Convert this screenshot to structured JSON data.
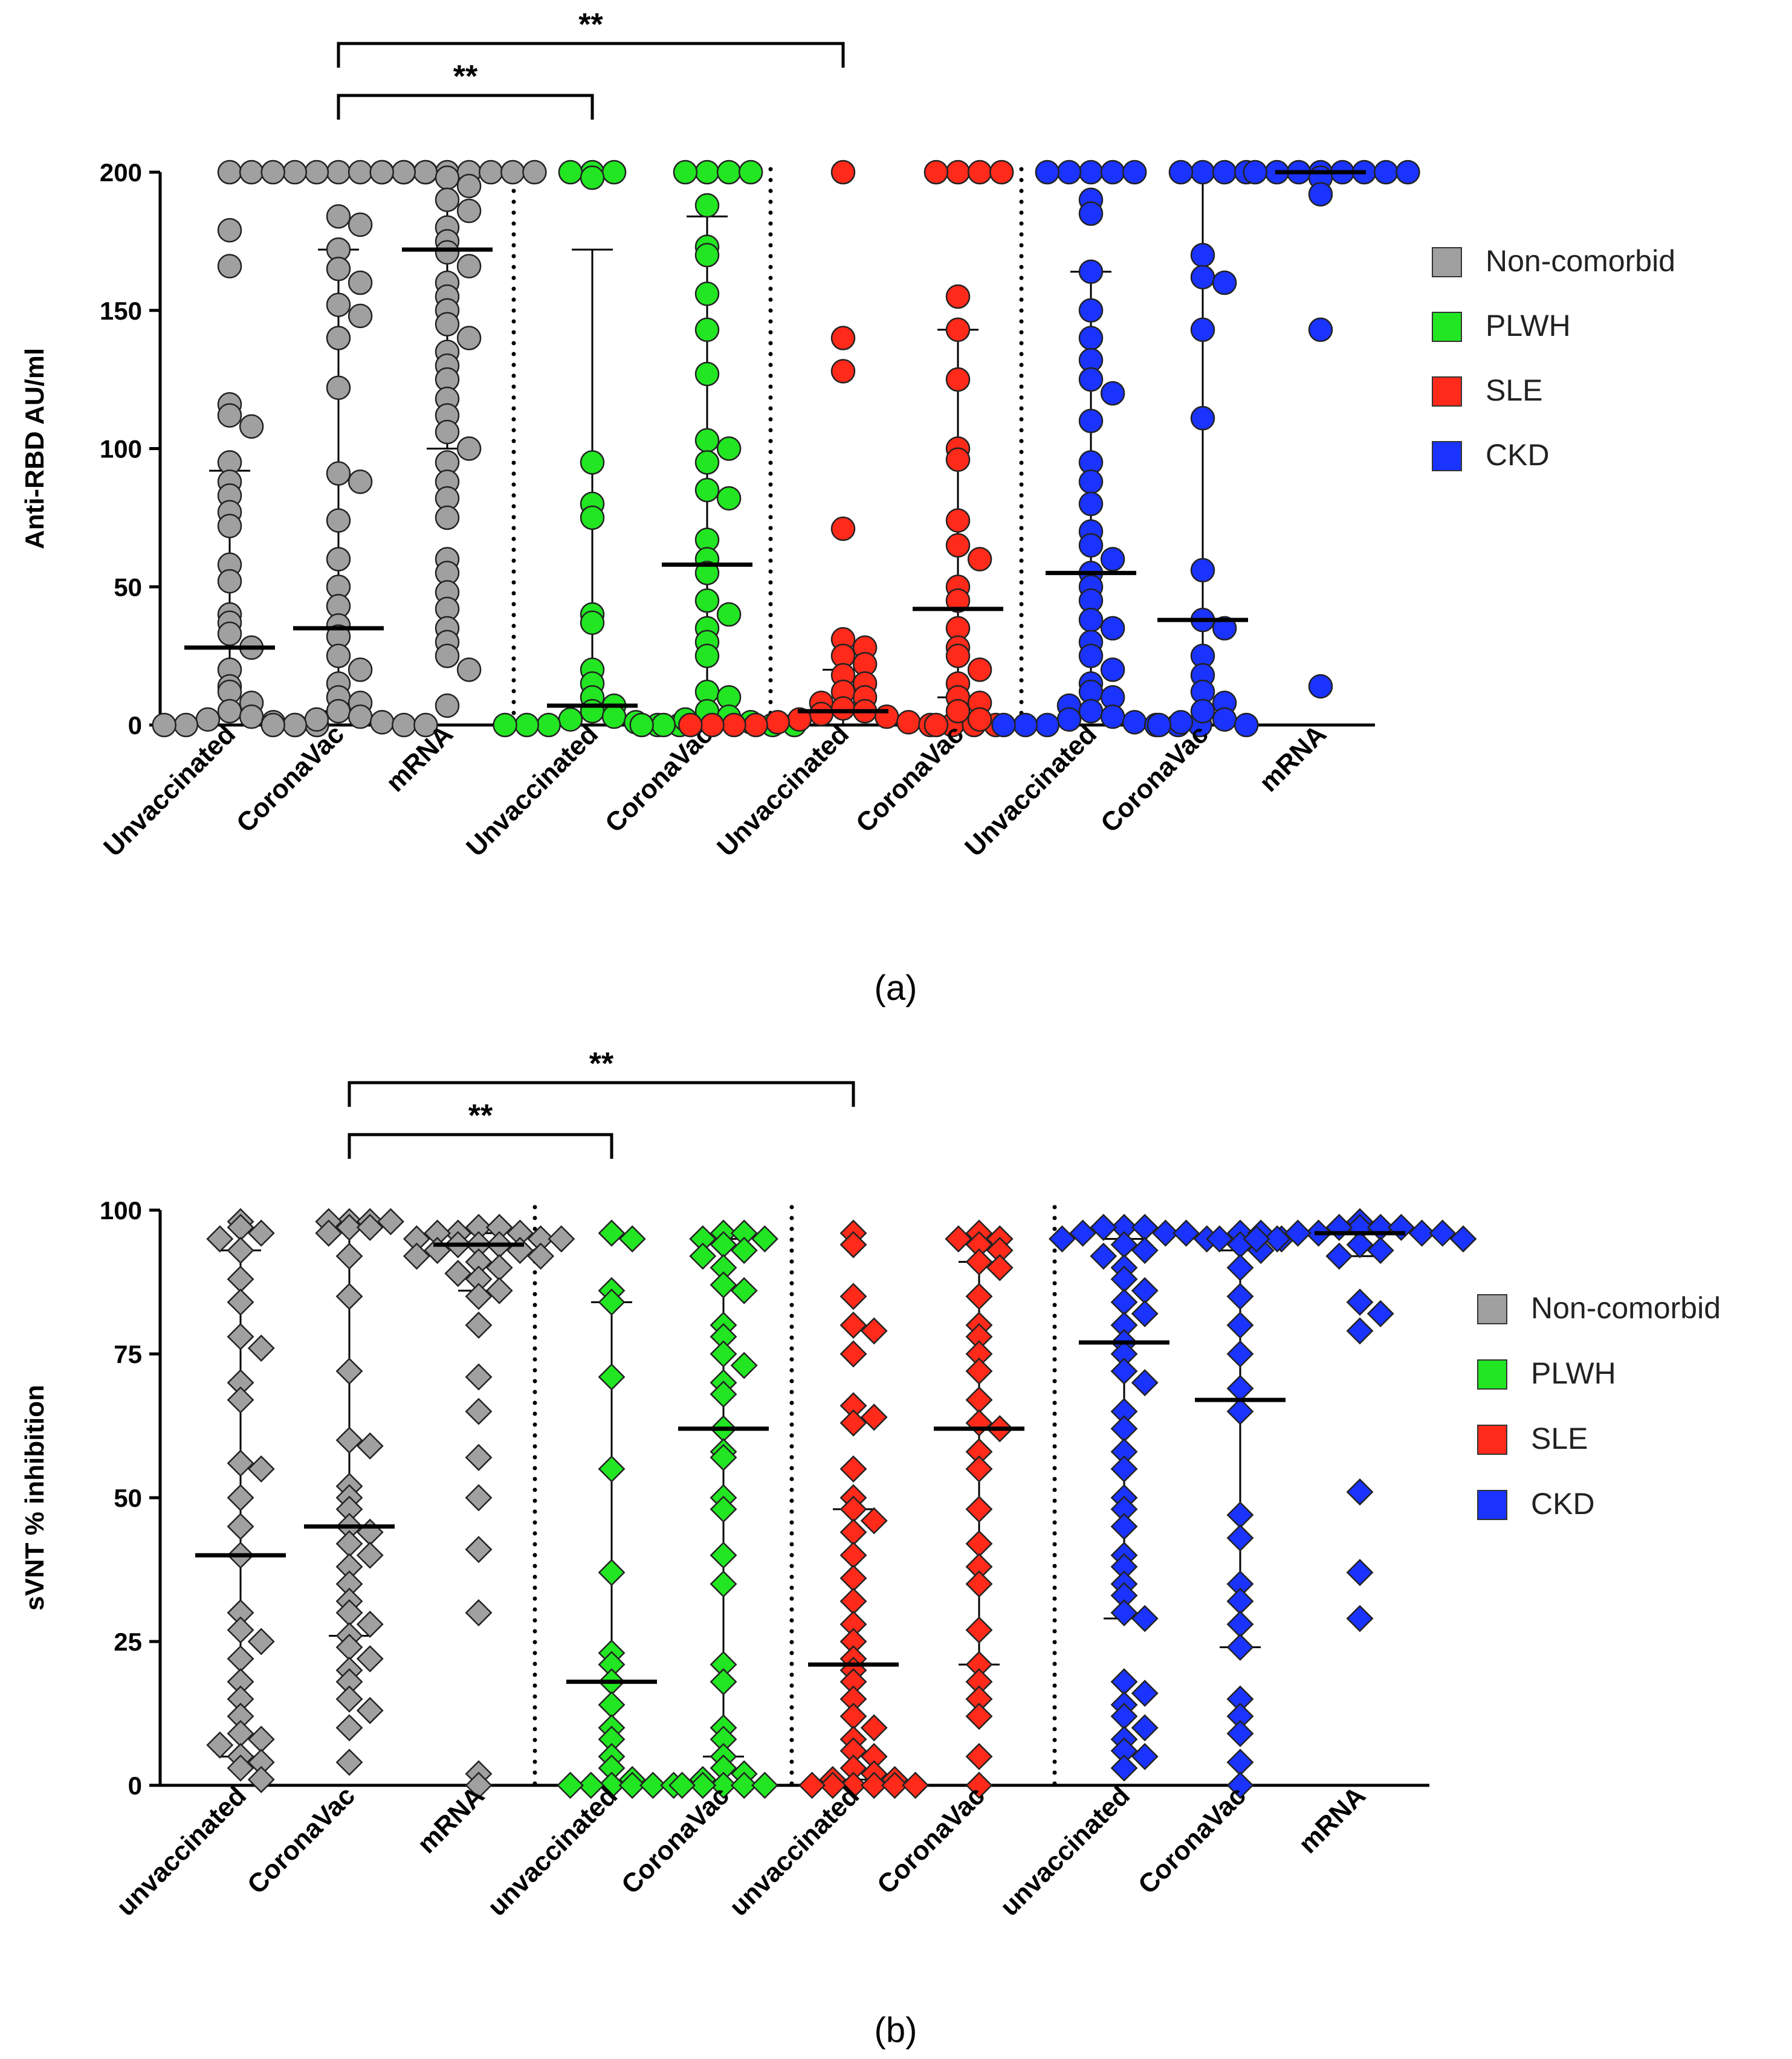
{
  "colors": {
    "Non-comorbid": "#a0a0a0",
    "PLWH": "#22e622",
    "SLE": "#ff2a1a",
    "CKD": "#1a33ff",
    "axis": "#000000"
  },
  "chart_data": [
    {
      "type": "scatter",
      "panel_label": "(a)",
      "marker": "circle",
      "ylabel": "Anti-RBD AU/ml",
      "ylim": [
        0,
        200
      ],
      "yticks": [
        0,
        50,
        100,
        150,
        200
      ],
      "legend": [
        "Non-comorbid",
        "PLWH",
        "SLE",
        "CKD"
      ],
      "legend_position": "right",
      "groups": [
        {
          "label": "Unvaccinated",
          "series": "Non-comorbid",
          "median": 28,
          "q1": 3,
          "q3": 92,
          "values": [
            200,
            200,
            179,
            166,
            116,
            112,
            108,
            95,
            88,
            83,
            77,
            72,
            58,
            52,
            40,
            37,
            33,
            28,
            20,
            14,
            12,
            8,
            5,
            3,
            2,
            1,
            0,
            0,
            0,
            0
          ]
        },
        {
          "label": "CoronaVac",
          "series": "Non-comorbid",
          "median": 35,
          "q1": 5,
          "q3": 172,
          "values": [
            200,
            200,
            200,
            200,
            200,
            200,
            200,
            200,
            184,
            181,
            172,
            165,
            160,
            152,
            148,
            140,
            122,
            91,
            88,
            74,
            60,
            50,
            43,
            36,
            32,
            25,
            20,
            15,
            10,
            8,
            5,
            3,
            2,
            1,
            0,
            0,
            0,
            0
          ]
        },
        {
          "label": "mRNA",
          "series": "Non-comorbid",
          "median": 172,
          "q1": 100,
          "q3": 200,
          "values": [
            200,
            200,
            200,
            200,
            200,
            200,
            200,
            200,
            198,
            195,
            190,
            186,
            180,
            175,
            171,
            166,
            160,
            155,
            150,
            145,
            140,
            135,
            130,
            125,
            118,
            112,
            106,
            100,
            95,
            88,
            82,
            75,
            60,
            55,
            48,
            42,
            35,
            30,
            25,
            20,
            7
          ]
        },
        {
          "label": "Unvaccinated",
          "series": "PLWH",
          "median": 7,
          "q1": 0,
          "q3": 172,
          "values": [
            200,
            200,
            200,
            198,
            95,
            80,
            75,
            40,
            37,
            20,
            15,
            10,
            7,
            5,
            3,
            2,
            1,
            0,
            0,
            0,
            0,
            0
          ]
        },
        {
          "label": "CoronaVac",
          "series": "PLWH",
          "median": 58,
          "q1": 3,
          "q3": 184,
          "values": [
            200,
            200,
            200,
            200,
            188,
            173,
            170,
            156,
            143,
            127,
            103,
            100,
            95,
            85,
            82,
            67,
            60,
            55,
            45,
            40,
            35,
            30,
            25,
            12,
            10,
            5,
            3,
            2,
            1,
            0,
            0,
            0,
            0
          ]
        },
        {
          "label": "Unvaccinated",
          "series": "SLE",
          "median": 5,
          "q1": 0,
          "q3": 20,
          "values": [
            200,
            140,
            128,
            71,
            31,
            28,
            25,
            22,
            18,
            15,
            12,
            10,
            8,
            6,
            5,
            4,
            3,
            2,
            1,
            1,
            0,
            0,
            0,
            0,
            0,
            0,
            0,
            0
          ]
        },
        {
          "label": "CoronaVac",
          "series": "SLE",
          "median": 42,
          "q1": 10,
          "q3": 143,
          "values": [
            200,
            200,
            200,
            200,
            155,
            143,
            125,
            100,
            96,
            74,
            65,
            60,
            50,
            45,
            35,
            28,
            25,
            20,
            15,
            10,
            8,
            5,
            2,
            0
          ]
        },
        {
          "label": "Unvaccinated",
          "series": "CKD",
          "median": 55,
          "q1": 3,
          "q3": 164,
          "values": [
            200,
            200,
            200,
            200,
            200,
            190,
            185,
            164,
            150,
            140,
            132,
            125,
            120,
            110,
            95,
            88,
            80,
            70,
            65,
            60,
            55,
            50,
            45,
            38,
            35,
            30,
            25,
            20,
            15,
            12,
            10,
            7,
            5,
            3,
            2,
            1,
            0,
            0,
            0,
            0,
            0,
            0
          ]
        },
        {
          "label": "CoronaVac",
          "series": "CKD",
          "median": 38,
          "q1": 3,
          "q3": 200,
          "values": [
            200,
            200,
            200,
            200,
            170,
            162,
            160,
            143,
            111,
            56,
            38,
            35,
            25,
            18,
            12,
            8,
            5,
            2,
            1,
            0,
            0
          ]
        },
        {
          "label": "mRNA",
          "series": "CKD",
          "median": 200,
          "q1": 200,
          "q3": 200,
          "values": [
            200,
            200,
            200,
            200,
            200,
            200,
            200,
            200,
            198,
            192,
            143,
            14
          ]
        }
      ],
      "significance": [
        {
          "from": 1,
          "to": 3,
          "label": "**"
        },
        {
          "from": 1,
          "to": 5,
          "label": "**"
        }
      ]
    },
    {
      "type": "scatter",
      "panel_label": "(b)",
      "marker": "diamond",
      "ylabel": "sVNT % inhibition",
      "ylim": [
        0,
        100
      ],
      "yticks": [
        0,
        25,
        50,
        75,
        100
      ],
      "legend": [
        "Non-comorbid",
        "PLWH",
        "SLE",
        "CKD"
      ],
      "legend_position": "right",
      "groups": [
        {
          "label": "unvaccinated",
          "series": "Non-comorbid",
          "median": 40,
          "q1": 5,
          "q3": 93,
          "values": [
            98,
            97,
            96,
            95,
            93,
            88,
            84,
            78,
            76,
            70,
            67,
            56,
            55,
            50,
            45,
            40,
            30,
            27,
            25,
            22,
            18,
            15,
            12,
            9,
            8,
            7,
            5,
            4,
            3,
            1
          ]
        },
        {
          "label": "CoronaVac",
          "series": "Non-comorbid",
          "median": 45,
          "q1": 26,
          "q3": 97,
          "values": [
            98,
            98,
            98,
            98,
            97,
            97,
            96,
            92,
            85,
            72,
            60,
            59,
            52,
            50,
            48,
            45,
            44,
            42,
            40,
            38,
            35,
            32,
            30,
            28,
            26,
            24,
            22,
            20,
            18,
            15,
            13,
            10,
            4
          ]
        },
        {
          "label": "mRNA",
          "series": "Non-comorbid",
          "median": 94,
          "q1": 86,
          "q3": 96,
          "values": [
            97,
            97,
            96,
            96,
            96,
            95,
            95,
            95,
            94,
            94,
            94,
            93,
            93,
            92,
            92,
            91,
            90,
            89,
            88,
            86,
            85,
            80,
            71,
            65,
            57,
            50,
            41,
            30,
            2,
            0
          ]
        },
        {
          "label": "unvaccinated",
          "series": "PLWH",
          "median": 18,
          "q1": 0,
          "q3": 84,
          "values": [
            96,
            95,
            86,
            84,
            71,
            55,
            37,
            23,
            21,
            18,
            14,
            10,
            8,
            5,
            3,
            1,
            0,
            0,
            0,
            0,
            0,
            0
          ]
        },
        {
          "label": "CoronaVac",
          "series": "PLWH",
          "median": 62,
          "q1": 5,
          "q3": 95,
          "values": [
            96,
            96,
            95,
            95,
            94,
            93,
            92,
            90,
            87,
            86,
            80,
            78,
            75,
            73,
            70,
            68,
            62,
            58,
            57,
            50,
            48,
            40,
            35,
            21,
            18,
            10,
            8,
            5,
            3,
            2,
            1,
            0,
            0,
            0,
            0,
            0
          ]
        },
        {
          "label": "unvaccinated",
          "series": "SLE",
          "median": 21,
          "q1": 1,
          "q3": 48,
          "values": [
            96,
            94,
            85,
            80,
            79,
            75,
            66,
            64,
            63,
            55,
            50,
            48,
            46,
            44,
            40,
            36,
            32,
            28,
            25,
            22,
            20,
            18,
            15,
            12,
            10,
            8,
            6,
            5,
            3,
            2,
            1,
            1,
            0,
            0,
            0,
            0,
            0,
            0
          ]
        },
        {
          "label": "CoronaVac",
          "series": "SLE",
          "median": 62,
          "q1": 21,
          "q3": 91,
          "values": [
            96,
            95,
            95,
            94,
            93,
            91,
            90,
            85,
            80,
            78,
            75,
            72,
            67,
            63,
            62,
            58,
            55,
            48,
            42,
            38,
            35,
            27,
            21,
            18,
            15,
            12,
            5,
            0
          ]
        },
        {
          "label": "unvaccinated",
          "series": "CKD",
          "median": 77,
          "q1": 29,
          "q3": 95,
          "values": [
            97,
            97,
            97,
            96,
            96,
            96,
            95,
            95,
            94,
            93,
            92,
            90,
            88,
            86,
            84,
            82,
            80,
            77,
            75,
            72,
            70,
            65,
            62,
            58,
            55,
            50,
            48,
            45,
            40,
            38,
            35,
            33,
            30,
            29,
            18,
            16,
            14,
            12,
            10,
            8,
            6,
            5,
            3
          ]
        },
        {
          "label": "CoronaVac",
          "series": "CKD",
          "median": 67,
          "q1": 24,
          "q3": 93,
          "values": [
            96,
            96,
            95,
            95,
            94,
            93,
            90,
            85,
            80,
            75,
            69,
            65,
            47,
            43,
            35,
            32,
            28,
            24,
            15,
            12,
            9,
            4,
            0
          ]
        },
        {
          "label": "mRNA",
          "series": "CKD",
          "median": 96,
          "q1": 92,
          "q3": 97,
          "values": [
            98,
            97,
            97,
            97,
            97,
            96,
            96,
            96,
            96,
            95,
            95,
            95,
            94,
            93,
            92,
            84,
            82,
            79,
            51,
            37,
            29
          ]
        }
      ],
      "significance": [
        {
          "from": 1,
          "to": 3,
          "label": "**"
        },
        {
          "from": 1,
          "to": 5,
          "label": "**"
        }
      ]
    }
  ]
}
